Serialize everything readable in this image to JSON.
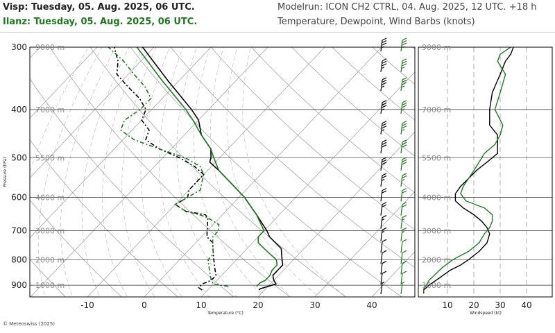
{
  "header": {
    "run_line_1": "Visp: Tuesday, 05. Aug. 2025, 06 UTC.",
    "run_line_2": "Ilanz: Tuesday, 05. Aug. 2025, 06 UTC.",
    "model_line": "Modelrun: ICON CH2 CTRL, 04. Aug. 2025, 12 UTC. +18 h",
    "params_line": "Temperature, Dewpoint, Wind Barbs (knots)"
  },
  "footer": {
    "copyright": "© Meteoswiss (2025)"
  },
  "colors": {
    "visp": "#000000",
    "ilanz": "#1f7a1f",
    "grid": "#9a9a9a",
    "axis": "#000000"
  },
  "chart_data": [
    {
      "type": "line",
      "subtype": "skew-t",
      "xlabel": "Temperature (°C)",
      "ylabel": "Pressure (hPa)",
      "xlim": [
        -20,
        45
      ],
      "ylim": [
        950,
        300
      ],
      "y_scale": "log",
      "x_ticks": [
        -10,
        0,
        10,
        20,
        30,
        40
      ],
      "y_ticks": [
        300,
        400,
        500,
        600,
        700,
        800,
        900
      ],
      "height_labels": [
        {
          "label": "9000 m",
          "p": 300
        },
        {
          "label": "7000 m",
          "p": 400
        },
        {
          "label": "5500 m",
          "p": 500
        },
        {
          "label": "4000 m",
          "p": 600
        },
        {
          "label": "3000 m",
          "p": 700
        },
        {
          "label": "2000 m",
          "p": 800
        },
        {
          "label": "1000 m",
          "p": 900
        }
      ],
      "series": [
        {
          "name": "Visp",
          "kind": "temperature",
          "color": "#000000",
          "p": [
            920,
            915,
            905,
            895,
            880,
            860,
            840,
            820,
            800,
            760,
            720,
            700,
            650,
            600,
            560,
            530,
            510,
            500,
            480,
            450,
            420,
            400,
            350,
            300
          ],
          "t": [
            19,
            19,
            20,
            21,
            20,
            19,
            19,
            19,
            18,
            16,
            12,
            10.5,
            6,
            1,
            -4,
            -8,
            -11,
            -11.5,
            -13,
            -17,
            -20,
            -23,
            -32,
            -42
          ]
        },
        {
          "name": "Visp",
          "kind": "dewpoint",
          "color": "#000000",
          "p": [
            920,
            910,
            895,
            880,
            860,
            840,
            820,
            800,
            780,
            760,
            740,
            720,
            700,
            680,
            660,
            650,
            640,
            620,
            600,
            580,
            560,
            540,
            520,
            500,
            480,
            460,
            440,
            420,
            400,
            380,
            360,
            340,
            320,
            300
          ],
          "t": [
            9,
            8,
            8,
            9,
            9,
            8,
            7,
            6,
            5,
            4,
            3,
            1,
            0,
            -1,
            -2,
            -3,
            -7,
            -10,
            -9,
            -10,
            -10,
            -10,
            -13,
            -17,
            -22,
            -26,
            -27,
            -30,
            -31,
            -34,
            -38,
            -42,
            -44,
            -47
          ]
        },
        {
          "name": "Ilanz",
          "kind": "temperature",
          "color": "#1f7a1f",
          "p": [
            905,
            900,
            890,
            880,
            860,
            840,
            820,
            800,
            780,
            760,
            740,
            720,
            700,
            650,
            600,
            560,
            530,
            510,
            500,
            480,
            450,
            420,
            400,
            350,
            300
          ],
          "t": [
            18,
            18,
            18,
            18.5,
            18.5,
            18,
            18,
            17,
            15,
            13,
            11,
            10,
            10,
            6,
            1,
            -4,
            -8,
            -10,
            -11,
            -13,
            -17,
            -21,
            -24,
            -33,
            -43
          ]
        },
        {
          "name": "Ilanz",
          "kind": "dewpoint",
          "color": "#1f7a1f",
          "p": [
            905,
            895,
            880,
            860,
            840,
            820,
            800,
            780,
            760,
            740,
            720,
            700,
            680,
            660,
            650,
            640,
            620,
            600,
            580,
            560,
            540,
            520,
            500,
            480,
            460,
            440,
            420,
            400,
            380,
            360,
            340,
            320,
            300
          ],
          "t": [
            13,
            10,
            9,
            8,
            7,
            6,
            5,
            5,
            4,
            3,
            2,
            2,
            1,
            -2,
            -4,
            -7,
            -10,
            -9,
            -8,
            -9,
            -10,
            -12,
            -16,
            -22,
            -28,
            -32,
            -33,
            -32,
            -32,
            -35,
            -39,
            -43,
            -48
          ]
        }
      ],
      "wind_barbs": {
        "p": [
          920,
          880,
          840,
          800,
          760,
          720,
          680,
          640,
          600,
          560,
          520,
          480,
          440,
          400,
          360,
          330,
          300
        ],
        "Visp_speed_kt": [
          5,
          8,
          10,
          10,
          12,
          15,
          15,
          20,
          20,
          25,
          30,
          30,
          35,
          35,
          35,
          35,
          35
        ],
        "Ilanz_speed_kt": [
          5,
          8,
          10,
          10,
          12,
          15,
          15,
          20,
          20,
          25,
          30,
          30,
          35,
          35,
          35,
          35,
          35
        ]
      }
    },
    {
      "type": "line",
      "subtype": "wind-profile",
      "xlabel": "Windspeed (kt)",
      "xlim": [
        0,
        45
      ],
      "x_ticks": [
        10,
        20,
        30,
        40
      ],
      "height_labels": [
        "9000 m",
        "7000 m",
        "5500 m",
        "4000 m",
        "3000 m",
        "2000 m",
        "1000 m"
      ],
      "series": [
        {
          "name": "Visp",
          "color": "#000000",
          "p": [
            935,
            920,
            900,
            870,
            840,
            820,
            800,
            770,
            740,
            710,
            690,
            670,
            650,
            630,
            610,
            590,
            570,
            550,
            530,
            510,
            490,
            470,
            450,
            430,
            400,
            370,
            340,
            320,
            310,
            300
          ],
          "speed": [
            1,
            1,
            3,
            7,
            11,
            15,
            18,
            22,
            25,
            26,
            25,
            23,
            20,
            16,
            13,
            13,
            15,
            18,
            21,
            25,
            29,
            29,
            29,
            26,
            26,
            27,
            30,
            32,
            34,
            35
          ]
        },
        {
          "name": "Ilanz",
          "color": "#1f7a1f",
          "p": [
            930,
            915,
            900,
            880,
            860,
            830,
            800,
            770,
            740,
            710,
            690,
            670,
            650,
            630,
            610,
            590,
            570,
            550,
            530,
            510,
            490,
            470,
            450,
            430,
            400,
            370,
            340,
            320,
            310,
            300
          ],
          "speed": [
            1,
            1,
            2,
            3,
            5,
            8,
            12,
            18,
            22,
            24,
            26,
            27,
            27,
            24,
            17,
            15,
            16,
            18,
            20,
            22,
            24,
            28,
            30,
            31,
            28,
            30,
            32,
            29,
            30,
            34
          ]
        }
      ]
    }
  ]
}
